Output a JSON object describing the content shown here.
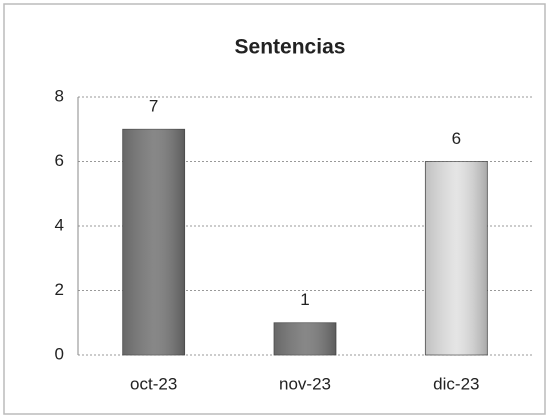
{
  "chart_data": {
    "type": "bar",
    "title": "Sentencias",
    "categories": [
      "oct-23",
      "nov-23",
      "dic-23"
    ],
    "values": [
      7,
      1,
      6
    ],
    "colors": [
      "#7a7a7a",
      "#7a7a7a",
      "#e2e2e2"
    ],
    "ylim": [
      0,
      8
    ],
    "yticks": [
      0,
      2,
      4,
      6,
      8
    ],
    "grid": true
  }
}
